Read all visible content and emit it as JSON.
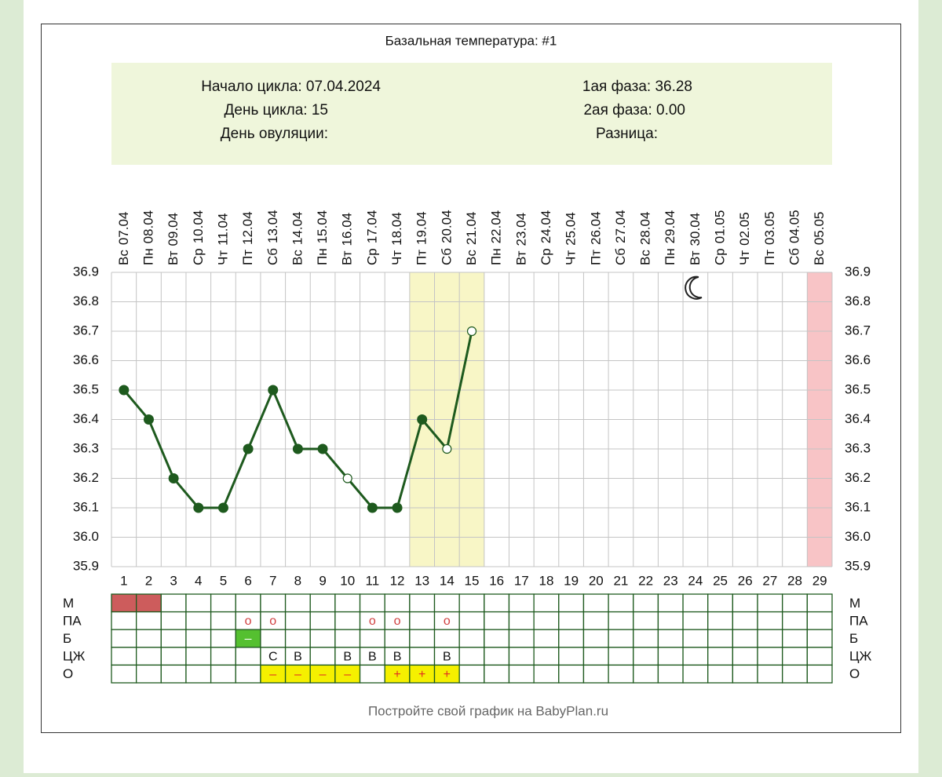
{
  "chart_data": {
    "type": "line",
    "title": "Базальная температура: #1",
    "info": {
      "cycle_start": "Начало цикла: 07.04.2024",
      "cycle_day": "День цикла: 15",
      "ovulation_day": "День овуляции:",
      "phase1": "1ая фаза: 36.28",
      "phase2": "2ая фаза: 0.00",
      "difference": "Разница:"
    },
    "categories": [
      "07.04",
      "08.04",
      "09.04",
      "10.04",
      "11.04",
      "12.04",
      "13.04",
      "14.04",
      "15.04",
      "16.04",
      "17.04",
      "18.04",
      "19.04",
      "20.04",
      "21.04",
      "22.04",
      "23.04",
      "24.04",
      "25.04",
      "26.04",
      "27.04",
      "28.04",
      "29.04",
      "30.04",
      "01.05",
      "02.05",
      "03.05",
      "04.05",
      "05.05"
    ],
    "weekdays": [
      "Вс",
      "Пн",
      "Вт",
      "Ср",
      "Чт",
      "Пт",
      "Сб",
      "Вс",
      "Пн",
      "Вт",
      "Ср",
      "Чт",
      "Пт",
      "Сб",
      "Вс",
      "Пн",
      "Вт",
      "Ср",
      "Чт",
      "Пт",
      "Сб",
      "Вс",
      "Пн",
      "Вт",
      "Ср",
      "Чт",
      "Пт",
      "Сб",
      "Вс"
    ],
    "x": [
      1,
      2,
      3,
      4,
      5,
      6,
      7,
      8,
      9,
      10,
      11,
      12,
      13,
      14,
      15,
      16,
      17,
      18,
      19,
      20,
      21,
      22,
      23,
      24,
      25,
      26,
      27,
      28,
      29
    ],
    "series": [
      {
        "color": "#1e5a1e",
        "values": [
          36.5,
          36.4,
          36.2,
          36.1,
          36.1,
          36.3,
          36.5,
          36.3,
          36.3,
          36.2,
          36.1,
          36.1,
          36.4,
          36.3,
          36.7,
          null,
          null,
          null,
          null,
          null,
          null,
          null,
          null,
          null,
          null,
          null,
          null,
          null,
          null
        ],
        "marker_open": [
          false,
          false,
          false,
          false,
          false,
          false,
          false,
          false,
          false,
          true,
          false,
          false,
          false,
          true,
          true,
          false,
          false,
          false,
          false,
          false,
          false,
          false,
          false,
          false,
          false,
          false,
          false,
          false,
          false
        ]
      }
    ],
    "ylim": [
      35.9,
      36.9
    ],
    "yticks": [
      35.9,
      {
        "value": 36,
        "label": "36.0"
      },
      36.1,
      36.2,
      36.3,
      36.4,
      36.5,
      36.6,
      36.7,
      36.8,
      36.9
    ],
    "grid": true,
    "highlight_bands": [
      {
        "from": 13,
        "to": 15,
        "color": "#f8f6c6"
      },
      {
        "from": 29,
        "to": 29,
        "color": "#f8c4c6"
      }
    ],
    "moon_day": 24,
    "table": {
      "rows": [
        {
          "label": "М",
          "cells": [
            null,
            null,
            null,
            null,
            null,
            null,
            null,
            null,
            null,
            null,
            null,
            null,
            null,
            null,
            null,
            null,
            null,
            null,
            null,
            null,
            null,
            null,
            null,
            null,
            null,
            null,
            null,
            null,
            null
          ],
          "fills": [
            "#cd5c5c",
            "#cd5c5c",
            null,
            null,
            null,
            null,
            null,
            null,
            null,
            null,
            null,
            null,
            null,
            null,
            null,
            null,
            null,
            null,
            null,
            null,
            null,
            null,
            null,
            null,
            null,
            null,
            null,
            null,
            null
          ]
        },
        {
          "label": "ПА",
          "cells": [
            null,
            null,
            null,
            null,
            null,
            "o",
            "o",
            null,
            null,
            null,
            "o",
            "o",
            null,
            "o",
            null,
            null,
            null,
            null,
            null,
            null,
            null,
            null,
            null,
            null,
            null,
            null,
            null,
            null,
            null
          ],
          "text_color": "#d04040"
        },
        {
          "label": "Б",
          "cells": [
            null,
            null,
            null,
            null,
            null,
            "–",
            null,
            null,
            null,
            null,
            null,
            null,
            null,
            null,
            null,
            null,
            null,
            null,
            null,
            null,
            null,
            null,
            null,
            null,
            null,
            null,
            null,
            null,
            null
          ],
          "fills": [
            null,
            null,
            null,
            null,
            null,
            "#55c030",
            null,
            null,
            null,
            null,
            null,
            null,
            null,
            null,
            null,
            null,
            null,
            null,
            null,
            null,
            null,
            null,
            null,
            null,
            null,
            null,
            null,
            null,
            null
          ],
          "text_color": "#ffffff"
        },
        {
          "label": "ЦЖ",
          "cells": [
            null,
            null,
            null,
            null,
            null,
            null,
            "С",
            "В",
            null,
            "В",
            "В",
            "В",
            null,
            "В",
            null,
            null,
            null,
            null,
            null,
            null,
            null,
            null,
            null,
            null,
            null,
            null,
            null,
            null,
            null
          ],
          "text_color": "#111111"
        },
        {
          "label": "О",
          "cells": [
            null,
            null,
            null,
            null,
            null,
            null,
            "–",
            "–",
            "–",
            "–",
            null,
            "+",
            "+",
            "+",
            null,
            null,
            null,
            null,
            null,
            null,
            null,
            null,
            null,
            null,
            null,
            null,
            null,
            null,
            null
          ],
          "fills": [
            null,
            null,
            null,
            null,
            null,
            null,
            "#f5f000",
            "#f5f000",
            "#f5f000",
            "#f5f000",
            null,
            "#f5f000",
            "#f5f000",
            "#f5f000",
            null,
            null,
            null,
            null,
            null,
            null,
            null,
            null,
            null,
            null,
            null,
            null,
            null,
            null,
            null
          ],
          "text_color": "#e03020"
        }
      ]
    },
    "footer": "Постройте свой график на BabyPlan.ru"
  }
}
